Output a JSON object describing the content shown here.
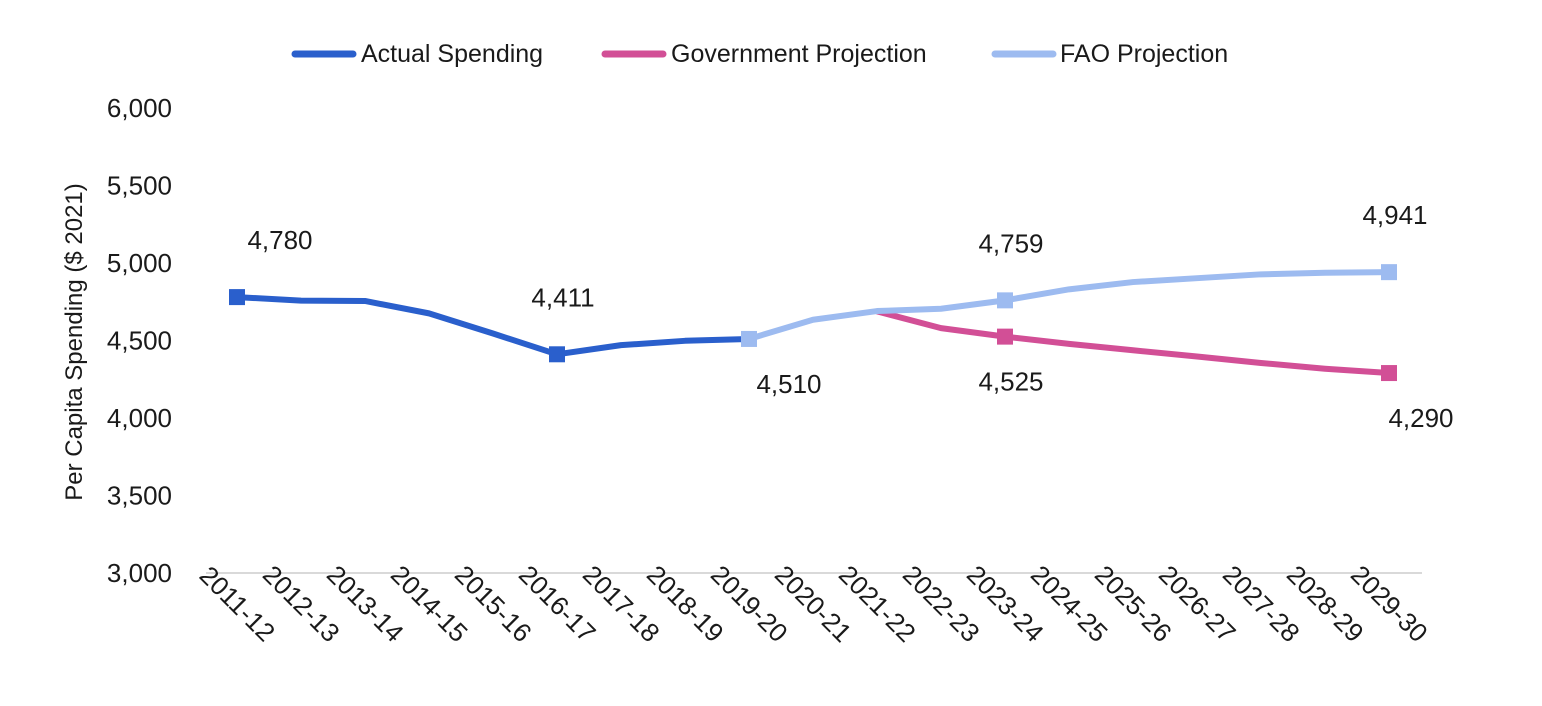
{
  "chart_data": {
    "type": "line",
    "title": "",
    "xlabel": "",
    "ylabel": "Per Capita Spending ($ 2021)",
    "ylim": [
      3000,
      6000
    ],
    "yticks": [
      "3,000",
      "3,500",
      "4,000",
      "4,500",
      "5,000",
      "5,500",
      "6,000"
    ],
    "grid": false,
    "legend_position": "top",
    "categories": [
      "2011-12",
      "2012-13",
      "2013-14",
      "2014-15",
      "2015-16",
      "2016-17",
      "2017-18",
      "2018-19",
      "2019-20",
      "2020-21",
      "2021-22",
      "2022-23",
      "2023-24",
      "2024-25",
      "2025-26",
      "2026-27",
      "2027-28",
      "2028-29",
      "2029-30"
    ],
    "series": [
      {
        "name": "Actual Spending",
        "color": "#2a5fcc",
        "values": [
          4780,
          4757,
          4755,
          4675,
          4545,
          4411,
          4470,
          4498,
          4510,
          null,
          null,
          null,
          null,
          null,
          null,
          null,
          null,
          null,
          null
        ],
        "markers": [
          0,
          5
        ],
        "labels": [
          {
            "index": 0,
            "text": "4,780",
            "pos": "above"
          },
          {
            "index": 5,
            "text": "4,411",
            "pos": "above"
          }
        ]
      },
      {
        "name": "Government Projection",
        "color": "#d24f96",
        "values": [
          null,
          null,
          null,
          null,
          null,
          null,
          null,
          null,
          null,
          null,
          4688,
          4580,
          4525,
          4478,
          4437,
          4397,
          4355,
          4318,
          4290
        ],
        "markers": [
          12,
          18
        ],
        "labels": [
          {
            "index": 12,
            "text": "4,525",
            "pos": "below"
          },
          {
            "index": 18,
            "text": "4,290",
            "pos": "below"
          }
        ]
      },
      {
        "name": "FAO Projection",
        "color": "#9dbbf0",
        "values": [
          null,
          null,
          null,
          null,
          null,
          null,
          null,
          null,
          4510,
          4634,
          4690,
          4705,
          4759,
          4830,
          4877,
          4902,
          4927,
          4937,
          4941
        ],
        "markers": [
          8,
          12,
          18
        ],
        "labels": [
          {
            "index": 8,
            "text": "4,510",
            "pos": "below"
          },
          {
            "index": 12,
            "text": "4,759",
            "pos": "above"
          },
          {
            "index": 18,
            "text": "4,941",
            "pos": "above"
          }
        ]
      }
    ]
  }
}
